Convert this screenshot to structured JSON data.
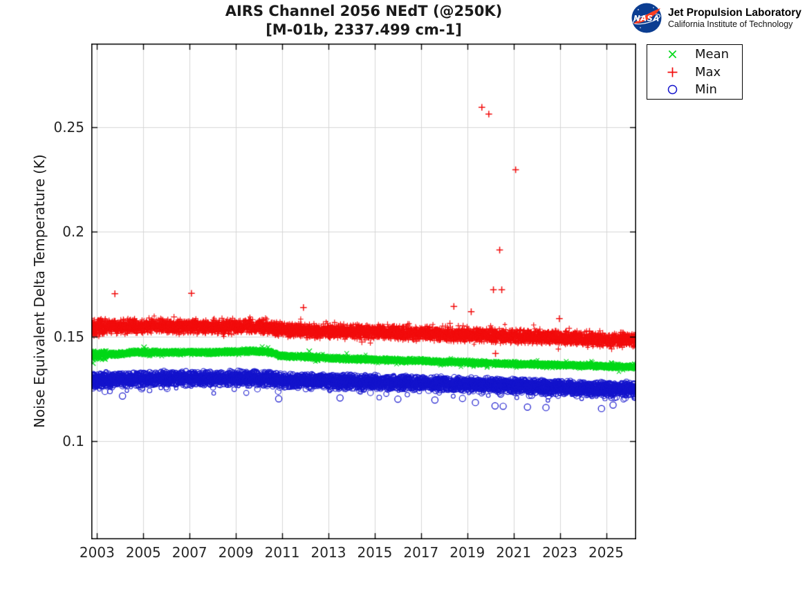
{
  "figure": {
    "title": "AIRS Channel 2056 NEdT (@250K)",
    "subtitle": "[M-01b, 2337.499 cm-1]"
  },
  "branding": {
    "logo": "nasa-meatball",
    "org": "NASA",
    "line1": "Jet Propulsion Laboratory",
    "line2": "California Institute of Technology",
    "logo_blue": "#0B3D91",
    "logo_red": "#FC3D21"
  },
  "chart_data": {
    "type": "scatter",
    "title": "AIRS Channel 2056 NEdT (@250K)",
    "subtitle": "[M-01b, 2337.499 cm-1]",
    "xlabel": "",
    "ylabel": "Noise Equivalent Delta Temperature (K)",
    "xlim": [
      2002.75,
      2026.3
    ],
    "ylim": [
      0.053,
      0.29
    ],
    "grid": true,
    "grid_color": "#d6d6d6",
    "x_ticks": {
      "values": [
        2003,
        2005,
        2007,
        2009,
        2011,
        2013,
        2015,
        2017,
        2019,
        2021,
        2023,
        2025
      ],
      "labels": [
        "2003",
        "2005",
        "2007",
        "2009",
        "2011",
        "2013",
        "2015",
        "2017",
        "2019",
        "2021",
        "2023",
        "2025"
      ]
    },
    "y_ticks": {
      "values": [
        0.1,
        0.15,
        0.2,
        0.25
      ],
      "labels": [
        "0.1",
        "0.15",
        "0.2",
        "0.25"
      ]
    },
    "legend": {
      "position": "outside-top-right",
      "entries": [
        {
          "label": "Mean",
          "marker": "x",
          "color": "#00d819"
        },
        {
          "label": "Max",
          "marker": "plus",
          "color": "#f20c0c"
        },
        {
          "label": "Min",
          "marker": "circle",
          "color": "#1414cc"
        }
      ]
    },
    "series": [
      {
        "name": "Max",
        "marker": "plus",
        "color": "#f20c0c",
        "band_halfwidth": 0.0036,
        "trend": [
          [
            2002.75,
            0.1542
          ],
          [
            2004,
            0.1548
          ],
          [
            2006,
            0.1549
          ],
          [
            2008,
            0.1545
          ],
          [
            2009.7,
            0.1549
          ],
          [
            2010.4,
            0.1542
          ],
          [
            2010.9,
            0.1532
          ],
          [
            2012,
            0.1528
          ],
          [
            2014,
            0.1522
          ],
          [
            2016,
            0.1516
          ],
          [
            2018,
            0.1511
          ],
          [
            2020,
            0.1504
          ],
          [
            2022,
            0.1497
          ],
          [
            2024,
            0.1489
          ],
          [
            2025.5,
            0.1483
          ],
          [
            2026.3,
            0.1481
          ]
        ]
      },
      {
        "name": "Mean",
        "marker": "x",
        "color": "#00d819",
        "band_halfwidth": 0.0014,
        "trend": [
          [
            2002.75,
            0.1408
          ],
          [
            2003.3,
            0.1413
          ],
          [
            2004.2,
            0.1418
          ],
          [
            2004.5,
            0.1424
          ],
          [
            2006,
            0.1424
          ],
          [
            2008,
            0.1423
          ],
          [
            2009.7,
            0.143
          ],
          [
            2010.4,
            0.1426
          ],
          [
            2010.9,
            0.1408
          ],
          [
            2011.5,
            0.1405
          ],
          [
            2012.5,
            0.1398
          ],
          [
            2014,
            0.1392
          ],
          [
            2016,
            0.1386
          ],
          [
            2018,
            0.1379
          ],
          [
            2020,
            0.1372
          ],
          [
            2022,
            0.1366
          ],
          [
            2024,
            0.136
          ],
          [
            2025.5,
            0.1356
          ],
          [
            2026.3,
            0.1355
          ]
        ]
      },
      {
        "name": "Min",
        "marker": "circle",
        "color": "#1414cc",
        "band_halfwidth": 0.0037,
        "low_tail": 0.0046,
        "trend": [
          [
            2002.75,
            0.1286
          ],
          [
            2003.5,
            0.1292
          ],
          [
            2005,
            0.1298
          ],
          [
            2007,
            0.13
          ],
          [
            2009,
            0.13
          ],
          [
            2009.8,
            0.1302
          ],
          [
            2010.4,
            0.1298
          ],
          [
            2010.9,
            0.1289
          ],
          [
            2012,
            0.1287
          ],
          [
            2014,
            0.1283
          ],
          [
            2016,
            0.1279
          ],
          [
            2018,
            0.1274
          ],
          [
            2020,
            0.1268
          ],
          [
            2022,
            0.1261
          ],
          [
            2024,
            0.1253
          ],
          [
            2025.5,
            0.1248
          ],
          [
            2026.3,
            0.1247
          ]
        ]
      }
    ],
    "outliers": {
      "Max": [
        [
          2003.77,
          0.1704
        ],
        [
          2007.08,
          0.1706
        ],
        [
          2011.92,
          0.1638
        ],
        [
          2018.42,
          0.1643
        ],
        [
          2019.17,
          0.1618
        ],
        [
          2019.63,
          0.2595
        ],
        [
          2019.93,
          0.2563
        ],
        [
          2020.13,
          0.1723
        ],
        [
          2020.4,
          0.1913
        ],
        [
          2020.49,
          0.1723
        ],
        [
          2021.09,
          0.2297
        ],
        [
          2022.98,
          0.1585
        ],
        [
          2020.22,
          0.1418
        ]
      ],
      "Mean": [
        [
          2002.82,
          0.1372
        ],
        [
          2005.03,
          0.1448
        ],
        [
          2012.17,
          0.1429
        ]
      ],
      "Min": [
        [
          2004.1,
          0.1215
        ],
        [
          2010.85,
          0.1202
        ],
        [
          2013.5,
          0.1206
        ],
        [
          2016.0,
          0.12
        ],
        [
          2017.6,
          0.1196
        ],
        [
          2019.35,
          0.1184
        ],
        [
          2020.2,
          0.1168
        ],
        [
          2020.55,
          0.1166
        ],
        [
          2021.6,
          0.1162
        ],
        [
          2022.4,
          0.116
        ],
        [
          2024.8,
          0.1155
        ],
        [
          2025.3,
          0.1172
        ]
      ]
    }
  }
}
